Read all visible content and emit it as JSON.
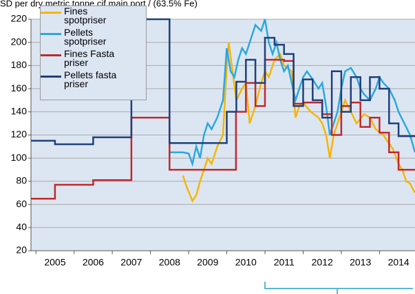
{
  "chart_data": {
    "type": "line",
    "y_axis_label": "SD per dry metric tonne cif main port / (63.5% Fe)",
    "categories": [
      "2005",
      "2006",
      "2007",
      "2008",
      "2009",
      "2010",
      "2011",
      "2012",
      "2013",
      "2014"
    ],
    "category_starts": [
      2005,
      2006,
      2007,
      2008,
      2009,
      2010,
      2011,
      2012,
      2013,
      2014
    ],
    "xlim": [
      2004.87,
      2014.93
    ],
    "ylim": [
      20,
      220
    ],
    "yticks": [
      20,
      40,
      60,
      80,
      100,
      120,
      140,
      160,
      180,
      200,
      220
    ],
    "grid": true,
    "series": [
      {
        "name": "Fines spotpriser",
        "color": "#f7b500",
        "x": [
          2008.85,
          2008.95,
          2009.1,
          2009.2,
          2009.3,
          2009.4,
          2009.5,
          2009.6,
          2009.75,
          2009.9,
          2010.0,
          2010.05,
          2010.15,
          2010.25,
          2010.4,
          2010.5,
          2010.6,
          2010.75,
          2010.9,
          2011.0,
          2011.1,
          2011.25,
          2011.4,
          2011.5,
          2011.7,
          2011.8,
          2011.9,
          2012.0,
          2012.2,
          2012.4,
          2012.5,
          2012.6,
          2012.7,
          2012.8,
          2013.0,
          2013.1,
          2013.25,
          2013.4,
          2013.6,
          2013.75,
          2013.9,
          2014.1,
          2014.2,
          2014.35,
          2014.5,
          2014.6,
          2014.7,
          2014.8,
          2014.93
        ],
        "values": [
          85,
          75,
          63,
          68,
          80,
          90,
          100,
          95,
          110,
          120,
          180,
          200,
          175,
          150,
          160,
          165,
          130,
          145,
          165,
          175,
          170,
          185,
          190,
          180,
          175,
          135,
          145,
          148,
          140,
          135,
          130,
          120,
          100,
          120,
          140,
          150,
          140,
          130,
          138,
          135,
          125,
          120,
          115,
          108,
          95,
          90,
          80,
          78,
          70
        ]
      },
      {
        "name": "Pellets spotpriser",
        "color": "#29a8e0",
        "x": [
          2008.5,
          2008.85,
          2009.0,
          2009.1,
          2009.2,
          2009.3,
          2009.4,
          2009.5,
          2009.6,
          2009.75,
          2009.9,
          2010.0,
          2010.1,
          2010.2,
          2010.3,
          2010.4,
          2010.5,
          2010.6,
          2010.75,
          2010.9,
          2011.0,
          2011.1,
          2011.2,
          2011.3,
          2011.4,
          2011.5,
          2011.6,
          2011.7,
          2011.8,
          2011.9,
          2012.0,
          2012.1,
          2012.25,
          2012.4,
          2012.5,
          2012.6,
          2012.7,
          2012.8,
          2012.9,
          2013.0,
          2013.1,
          2013.25,
          2013.4,
          2013.5,
          2013.6,
          2013.75,
          2013.9,
          2014.0,
          2014.1,
          2014.25,
          2014.4,
          2014.5,
          2014.65,
          2014.8,
          2014.93
        ],
        "values": [
          105,
          105,
          104,
          95,
          110,
          100,
          120,
          130,
          125,
          135,
          150,
          195,
          175,
          170,
          185,
          195,
          190,
          200,
          215,
          210,
          220,
          200,
          190,
          200,
          185,
          175,
          180,
          165,
          150,
          160,
          170,
          175,
          168,
          160,
          165,
          145,
          120,
          130,
          140,
          160,
          175,
          178,
          170,
          160,
          155,
          150,
          160,
          170,
          165,
          160,
          150,
          140,
          130,
          120,
          105
        ]
      },
      {
        "name": "Fines Fasta priser",
        "color": "#c0282d",
        "x": [
          2004.87,
          2005.5,
          2005.5,
          2006.5,
          2006.5,
          2007.5,
          2007.5,
          2008.5,
          2008.5,
          2010.24,
          2010.24,
          2010.5,
          2010.5,
          2010.75,
          2010.75,
          2011.0,
          2011.0,
          2011.5,
          2011.5,
          2011.75,
          2011.75,
          2012.0,
          2012.0,
          2012.5,
          2012.5,
          2012.75,
          2012.75,
          2013.0,
          2013.0,
          2013.25,
          2013.25,
          2013.5,
          2013.5,
          2013.75,
          2013.75,
          2014.0,
          2014.0,
          2014.25,
          2014.25,
          2014.5,
          2014.5,
          2014.93
        ],
        "values": [
          65,
          65,
          77,
          77,
          81,
          81,
          135,
          135,
          90,
          90,
          140,
          140,
          165,
          165,
          145,
          145,
          185,
          185,
          184,
          184,
          147,
          147,
          148,
          148,
          138,
          138,
          120,
          120,
          145,
          145,
          148,
          148,
          127,
          127,
          135,
          135,
          122,
          122,
          105,
          105,
          90,
          90
        ]
      },
      {
        "name": "Pellets fasta priser",
        "color": "#1f3f7a",
        "x": [
          2004.87,
          2005.5,
          2005.5,
          2006.5,
          2006.5,
          2007.5,
          2007.5,
          2008.5,
          2008.5,
          2010.0,
          2010.0,
          2010.25,
          2010.25,
          2010.5,
          2010.5,
          2010.75,
          2010.75,
          2011.0,
          2011.0,
          2011.25,
          2011.25,
          2011.5,
          2011.5,
          2011.75,
          2011.75,
          2012.0,
          2012.0,
          2012.25,
          2012.25,
          2012.5,
          2012.5,
          2012.75,
          2012.75,
          2013.0,
          2013.0,
          2013.25,
          2013.25,
          2013.5,
          2013.5,
          2013.75,
          2013.75,
          2014.0,
          2014.0,
          2014.25,
          2014.25,
          2014.5,
          2014.5,
          2014.93
        ],
        "values": [
          115,
          115,
          112,
          112,
          118,
          118,
          220,
          220,
          113,
          113,
          140,
          140,
          166,
          166,
          185,
          185,
          165,
          165,
          204,
          204,
          198,
          198,
          190,
          190,
          145,
          145,
          168,
          168,
          150,
          150,
          135,
          135,
          175,
          175,
          140,
          140,
          170,
          170,
          150,
          150,
          170,
          170,
          160,
          160,
          130,
          130,
          119,
          119
        ]
      }
    ]
  }
}
